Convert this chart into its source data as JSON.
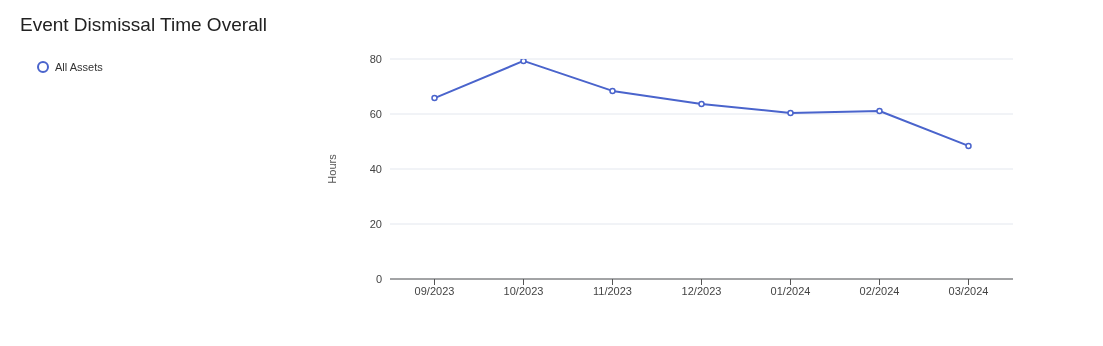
{
  "chart_data": {
    "type": "line",
    "title": "Event Dismissal Time Overall",
    "ylabel": "Hours",
    "categories": [
      "09/2023",
      "10/2023",
      "11/2023",
      "12/2023",
      "01/2024",
      "02/2024",
      "03/2024"
    ],
    "series": [
      {
        "name": "All Assets",
        "color": "#4a64cc",
        "values": [
          65.8,
          79.3,
          68.4,
          63.6,
          60.4,
          61.1,
          48.4
        ]
      }
    ],
    "ylim": [
      0,
      80
    ],
    "yticks": [
      0,
      20,
      40,
      60,
      80
    ],
    "grid": "y",
    "legend": "top left",
    "marker": "circle",
    "line_style": "solid"
  }
}
